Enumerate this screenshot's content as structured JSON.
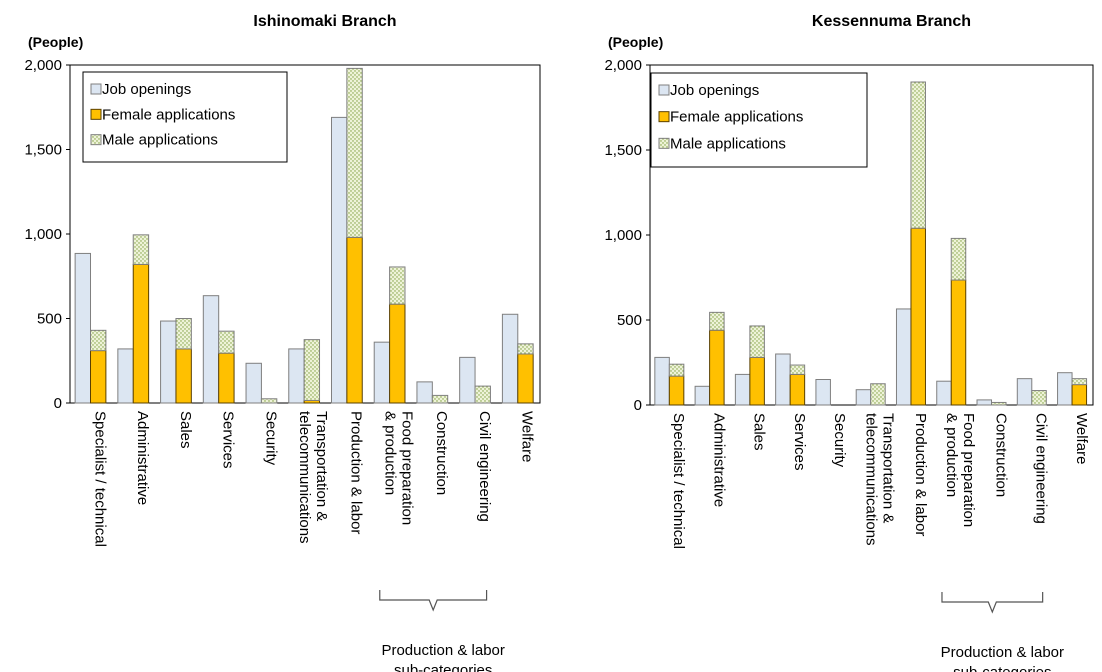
{
  "chart_data": [
    {
      "type": "bar",
      "title": "Ishinomaki Branch",
      "y_label": "(People)",
      "categories": [
        "Specialist / technical",
        "Administrative",
        "Sales",
        "Services",
        "Security",
        "Transportation & telecommunications",
        "Production & labor",
        "Food preparation & production",
        "Construction",
        "Civil engineering",
        "Welfare"
      ],
      "series": [
        {
          "name": "Job openings",
          "color": "#dce6f2",
          "values": [
            885,
            320,
            485,
            635,
            235,
            320,
            1690,
            360,
            125,
            270,
            525
          ]
        },
        {
          "name": "Female applications",
          "color": "#ffc000",
          "stack": true,
          "values": [
            310,
            820,
            320,
            295,
            0,
            15,
            980,
            585,
            0,
            0,
            290
          ]
        },
        {
          "name": "Male applications",
          "color": "#eef3d8",
          "pattern": "dotted",
          "stack": true,
          "values": [
            120,
            175,
            180,
            130,
            25,
            360,
            1000,
            220,
            45,
            100,
            60
          ]
        }
      ],
      "ylim": [
        0,
        2000
      ],
      "yticks": [
        0,
        500,
        {
          "value": 1000,
          "label": "1,000"
        },
        {
          "value": 1500,
          "label": "1,500"
        },
        {
          "value": 2000,
          "label": "2,000"
        }
      ],
      "annotation": [
        "Production & labor",
        "sub-categories"
      ]
    },
    {
      "type": "bar",
      "title": "Kessennuma Branch",
      "y_label": "(People)",
      "categories": [
        "Specialist / technical",
        "Administrative",
        "Sales",
        "Services",
        "Security",
        "Transportation & telecommunications",
        "Production & labor",
        "Food preparation & production",
        "Construction",
        "Civil engineering",
        "Welfare"
      ],
      "series": [
        {
          "name": "Job openings",
          "color": "#dce6f2",
          "values": [
            280,
            110,
            180,
            300,
            150,
            90,
            565,
            140,
            30,
            155,
            190
          ]
        },
        {
          "name": "Female applications",
          "color": "#ffc000",
          "stack": true,
          "values": [
            170,
            440,
            280,
            180,
            0,
            0,
            1040,
            735,
            0,
            0,
            120
          ]
        },
        {
          "name": "Male applications",
          "color": "#eef3d8",
          "pattern": "dotted",
          "stack": true,
          "values": [
            70,
            105,
            185,
            55,
            0,
            125,
            860,
            245,
            15,
            85,
            35
          ]
        }
      ],
      "ylim": [
        0,
        2000
      ],
      "yticks": [
        0,
        500,
        {
          "value": 1000,
          "label": "1,000"
        },
        {
          "value": 1500,
          "label": "1,500"
        },
        {
          "value": 2000,
          "label": "2,000"
        }
      ],
      "annotation": [
        "Production & labor",
        "sub-categories"
      ]
    }
  ]
}
